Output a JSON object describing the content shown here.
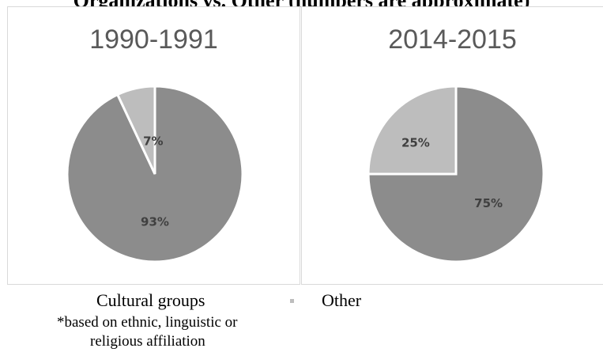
{
  "header": {
    "title": "Organizations vs. Other (numbers are approximate)"
  },
  "legend": {
    "items": [
      {
        "label": "Cultural groups",
        "color": "#8c8c8c"
      },
      {
        "label": "Other",
        "color": "#bdbdbd"
      }
    ],
    "footnote_line1": "*based on ethnic, linguistic or",
    "footnote_line2": "religious affiliation"
  },
  "chart_data": [
    {
      "type": "pie",
      "title": "1990-1991",
      "slices": [
        {
          "category": "Cultural groups",
          "value": 93,
          "label": "93%",
          "color": "#8c8c8c"
        },
        {
          "category": "Other",
          "value": 7,
          "label": "7%",
          "color": "#bdbdbd"
        }
      ]
    },
    {
      "type": "pie",
      "title": "2014-2015",
      "slices": [
        {
          "category": "Cultural groups",
          "value": 75,
          "label": "75%",
          "color": "#8c8c8c"
        },
        {
          "category": "Other",
          "value": 25,
          "label": "25%",
          "color": "#bdbdbd"
        }
      ]
    }
  ]
}
